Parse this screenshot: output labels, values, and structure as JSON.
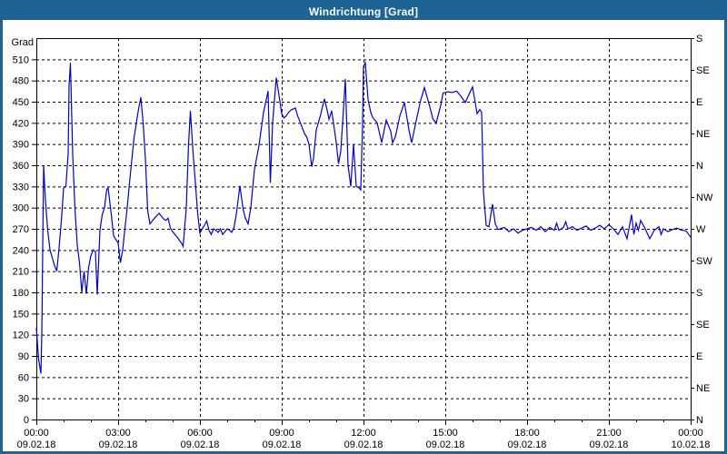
{
  "window": {
    "title": "Windrichtung [Grad]"
  },
  "colors": {
    "frame_blue": "#1d6394",
    "line_blue": "#0000cc",
    "axis_black": "#000000",
    "background_white": "#ffffff"
  },
  "chart_data": {
    "type": "line",
    "title": "Windrichtung [Grad]",
    "ylabel": "Grad",
    "y_range": [
      0,
      540
    ],
    "y_tick_step": 30,
    "y_tick_labels": [
      0,
      30,
      60,
      90,
      120,
      150,
      180,
      210,
      240,
      270,
      300,
      330,
      360,
      390,
      420,
      450,
      480,
      510
    ],
    "right_axis_compass": [
      {
        "deg": 540,
        "label": "S"
      },
      {
        "deg": 495,
        "label": "SE"
      },
      {
        "deg": 450,
        "label": "E"
      },
      {
        "deg": 405,
        "label": "NE"
      },
      {
        "deg": 360,
        "label": "N"
      },
      {
        "deg": 315,
        "label": "NW"
      },
      {
        "deg": 270,
        "label": "W"
      },
      {
        "deg": 225,
        "label": "SW"
      },
      {
        "deg": 180,
        "label": "S"
      },
      {
        "deg": 135,
        "label": "SE"
      },
      {
        "deg": 90,
        "label": "E"
      },
      {
        "deg": 45,
        "label": "NE"
      },
      {
        "deg": 0,
        "label": "N"
      }
    ],
    "x_range_minutes": [
      0,
      1440
    ],
    "x_minor_tick_minutes": 60,
    "x_ticks": [
      {
        "minute": 0,
        "time": "00:00",
        "date": "09.02.18"
      },
      {
        "minute": 180,
        "time": "03:00",
        "date": "09.02.18"
      },
      {
        "minute": 360,
        "time": "06:00",
        "date": "09.02.18"
      },
      {
        "minute": 540,
        "time": "09:00",
        "date": "09.02.18"
      },
      {
        "minute": 720,
        "time": "12:00",
        "date": "09.02.18"
      },
      {
        "minute": 900,
        "time": "15:00",
        "date": "09.02.18"
      },
      {
        "minute": 1080,
        "time": "18:00",
        "date": "09.02.18"
      },
      {
        "minute": 1260,
        "time": "21:00",
        "date": "09.02.18"
      },
      {
        "minute": 1440,
        "time": "00:00",
        "date": "10.02.18"
      }
    ],
    "grid": "dashed",
    "legend": "none",
    "series": [
      {
        "name": "Windrichtung",
        "color": "#0000cc",
        "points": [
          [
            0,
            130
          ],
          [
            5,
            85
          ],
          [
            10,
            65
          ],
          [
            12,
            120
          ],
          [
            16,
            360
          ],
          [
            20,
            310
          ],
          [
            25,
            268
          ],
          [
            30,
            240
          ],
          [
            40,
            218
          ],
          [
            45,
            210
          ],
          [
            50,
            243
          ],
          [
            55,
            281
          ],
          [
            60,
            328
          ],
          [
            65,
            330
          ],
          [
            70,
            376
          ],
          [
            72,
            473
          ],
          [
            75,
            505
          ],
          [
            80,
            375
          ],
          [
            85,
            298
          ],
          [
            90,
            247
          ],
          [
            95,
            222
          ],
          [
            100,
            180
          ],
          [
            105,
            210
          ],
          [
            110,
            178
          ],
          [
            115,
            215
          ],
          [
            120,
            232
          ],
          [
            125,
            240
          ],
          [
            130,
            238
          ],
          [
            134,
            177
          ],
          [
            140,
            268
          ],
          [
            145,
            290
          ],
          [
            150,
            300
          ],
          [
            155,
            326
          ],
          [
            158,
            328
          ],
          [
            165,
            290
          ],
          [
            170,
            260
          ],
          [
            175,
            255
          ],
          [
            180,
            250
          ],
          [
            185,
            222
          ],
          [
            190,
            240
          ],
          [
            195,
            271
          ],
          [
            200,
            300
          ],
          [
            205,
            335
          ],
          [
            215,
            399
          ],
          [
            225,
            440
          ],
          [
            230,
            456
          ],
          [
            235,
            420
          ],
          [
            240,
            369
          ],
          [
            245,
            296
          ],
          [
            250,
            277
          ],
          [
            260,
            285
          ],
          [
            270,
            292
          ],
          [
            280,
            284
          ],
          [
            285,
            282
          ],
          [
            290,
            285
          ],
          [
            295,
            271
          ],
          [
            300,
            266
          ],
          [
            310,
            258
          ],
          [
            320,
            249
          ],
          [
            323,
            245
          ],
          [
            330,
            300
          ],
          [
            335,
            390
          ],
          [
            339,
            437
          ],
          [
            345,
            377
          ],
          [
            350,
            335
          ],
          [
            355,
            292
          ],
          [
            360,
            264
          ],
          [
            365,
            270
          ],
          [
            370,
            275
          ],
          [
            375,
            281
          ],
          [
            380,
            268
          ],
          [
            385,
            262
          ],
          [
            390,
            270
          ],
          [
            395,
            268
          ],
          [
            400,
            265
          ],
          [
            405,
            270
          ],
          [
            410,
            262
          ],
          [
            415,
            266
          ],
          [
            420,
            270
          ],
          [
            425,
            268
          ],
          [
            430,
            265
          ],
          [
            435,
            272
          ],
          [
            440,
            290
          ],
          [
            448,
            331
          ],
          [
            455,
            298
          ],
          [
            460,
            285
          ],
          [
            466,
            277
          ],
          [
            472,
            300
          ],
          [
            480,
            354
          ],
          [
            490,
            388
          ],
          [
            500,
            435
          ],
          [
            510,
            465
          ],
          [
            515,
            335
          ],
          [
            520,
            420
          ],
          [
            528,
            484
          ],
          [
            535,
            455
          ],
          [
            540,
            433
          ],
          [
            545,
            427
          ],
          [
            550,
            430
          ],
          [
            555,
            435
          ],
          [
            560,
            438
          ],
          [
            570,
            441
          ],
          [
            575,
            430
          ],
          [
            580,
            422
          ],
          [
            590,
            405
          ],
          [
            595,
            400
          ],
          [
            600,
            390
          ],
          [
            606,
            358
          ],
          [
            610,
            370
          ],
          [
            616,
            410
          ],
          [
            625,
            430
          ],
          [
            634,
            454
          ],
          [
            640,
            438
          ],
          [
            644,
            425
          ],
          [
            650,
            437
          ],
          [
            655,
            415
          ],
          [
            660,
            392
          ],
          [
            665,
            362
          ],
          [
            670,
            380
          ],
          [
            675,
            430
          ],
          [
            680,
            482
          ],
          [
            686,
            360
          ],
          [
            692,
            330
          ],
          [
            698,
            390
          ],
          [
            704,
            330
          ],
          [
            710,
            328
          ],
          [
            714,
            325
          ],
          [
            718,
            420
          ],
          [
            720,
            500
          ],
          [
            724,
            505
          ],
          [
            730,
            453
          ],
          [
            736,
            435
          ],
          [
            740,
            428
          ],
          [
            750,
            420
          ],
          [
            760,
            392
          ],
          [
            770,
            424
          ],
          [
            780,
            408
          ],
          [
            784,
            392
          ],
          [
            790,
            400
          ],
          [
            800,
            430
          ],
          [
            810,
            449
          ],
          [
            820,
            410
          ],
          [
            826,
            392
          ],
          [
            835,
            420
          ],
          [
            845,
            450
          ],
          [
            854,
            470
          ],
          [
            865,
            445
          ],
          [
            873,
            425
          ],
          [
            880,
            420
          ],
          [
            890,
            445
          ],
          [
            895,
            462
          ],
          [
            905,
            464
          ],
          [
            915,
            463
          ],
          [
            925,
            465
          ],
          [
            934,
            458
          ],
          [
            944,
            449
          ],
          [
            952,
            460
          ],
          [
            960,
            471
          ],
          [
            970,
            433
          ],
          [
            976,
            439
          ],
          [
            980,
            435
          ],
          [
            984,
            322
          ],
          [
            990,
            275
          ],
          [
            996,
            273
          ],
          [
            1004,
            305
          ],
          [
            1010,
            277
          ],
          [
            1016,
            269
          ],
          [
            1030,
            272
          ],
          [
            1040,
            266
          ],
          [
            1050,
            270
          ],
          [
            1060,
            264
          ],
          [
            1070,
            268
          ],
          [
            1080,
            270
          ],
          [
            1090,
            272
          ],
          [
            1100,
            268
          ],
          [
            1110,
            273
          ],
          [
            1120,
            266
          ],
          [
            1130,
            272
          ],
          [
            1140,
            268
          ],
          [
            1145,
            278
          ],
          [
            1150,
            268
          ],
          [
            1160,
            272
          ],
          [
            1165,
            280
          ],
          [
            1170,
            270
          ],
          [
            1180,
            273
          ],
          [
            1190,
            268
          ],
          [
            1200,
            271
          ],
          [
            1210,
            274
          ],
          [
            1220,
            268
          ],
          [
            1230,
            271
          ],
          [
            1240,
            275
          ],
          [
            1250,
            270
          ],
          [
            1260,
            276
          ],
          [
            1270,
            270
          ],
          [
            1280,
            262
          ],
          [
            1290,
            273
          ],
          [
            1300,
            256
          ],
          [
            1310,
            290
          ],
          [
            1315,
            262
          ],
          [
            1320,
            278
          ],
          [
            1325,
            268
          ],
          [
            1330,
            282
          ],
          [
            1340,
            270
          ],
          [
            1350,
            256
          ],
          [
            1360,
            268
          ],
          [
            1370,
            273
          ],
          [
            1375,
            262
          ],
          [
            1380,
            270
          ],
          [
            1390,
            266
          ],
          [
            1400,
            269
          ],
          [
            1410,
            271
          ],
          [
            1420,
            268
          ],
          [
            1430,
            267
          ],
          [
            1440,
            258
          ]
        ]
      }
    ]
  }
}
